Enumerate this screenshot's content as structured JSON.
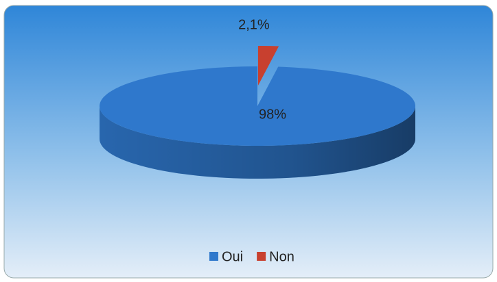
{
  "chart_data": {
    "type": "pie",
    "categories": [
      "Oui",
      "Non"
    ],
    "values": [
      98,
      2.1
    ],
    "value_labels": [
      "98%",
      "2,1%"
    ],
    "colors": [
      "#2f78cc",
      "#c8402f"
    ],
    "legend": "bottom"
  }
}
